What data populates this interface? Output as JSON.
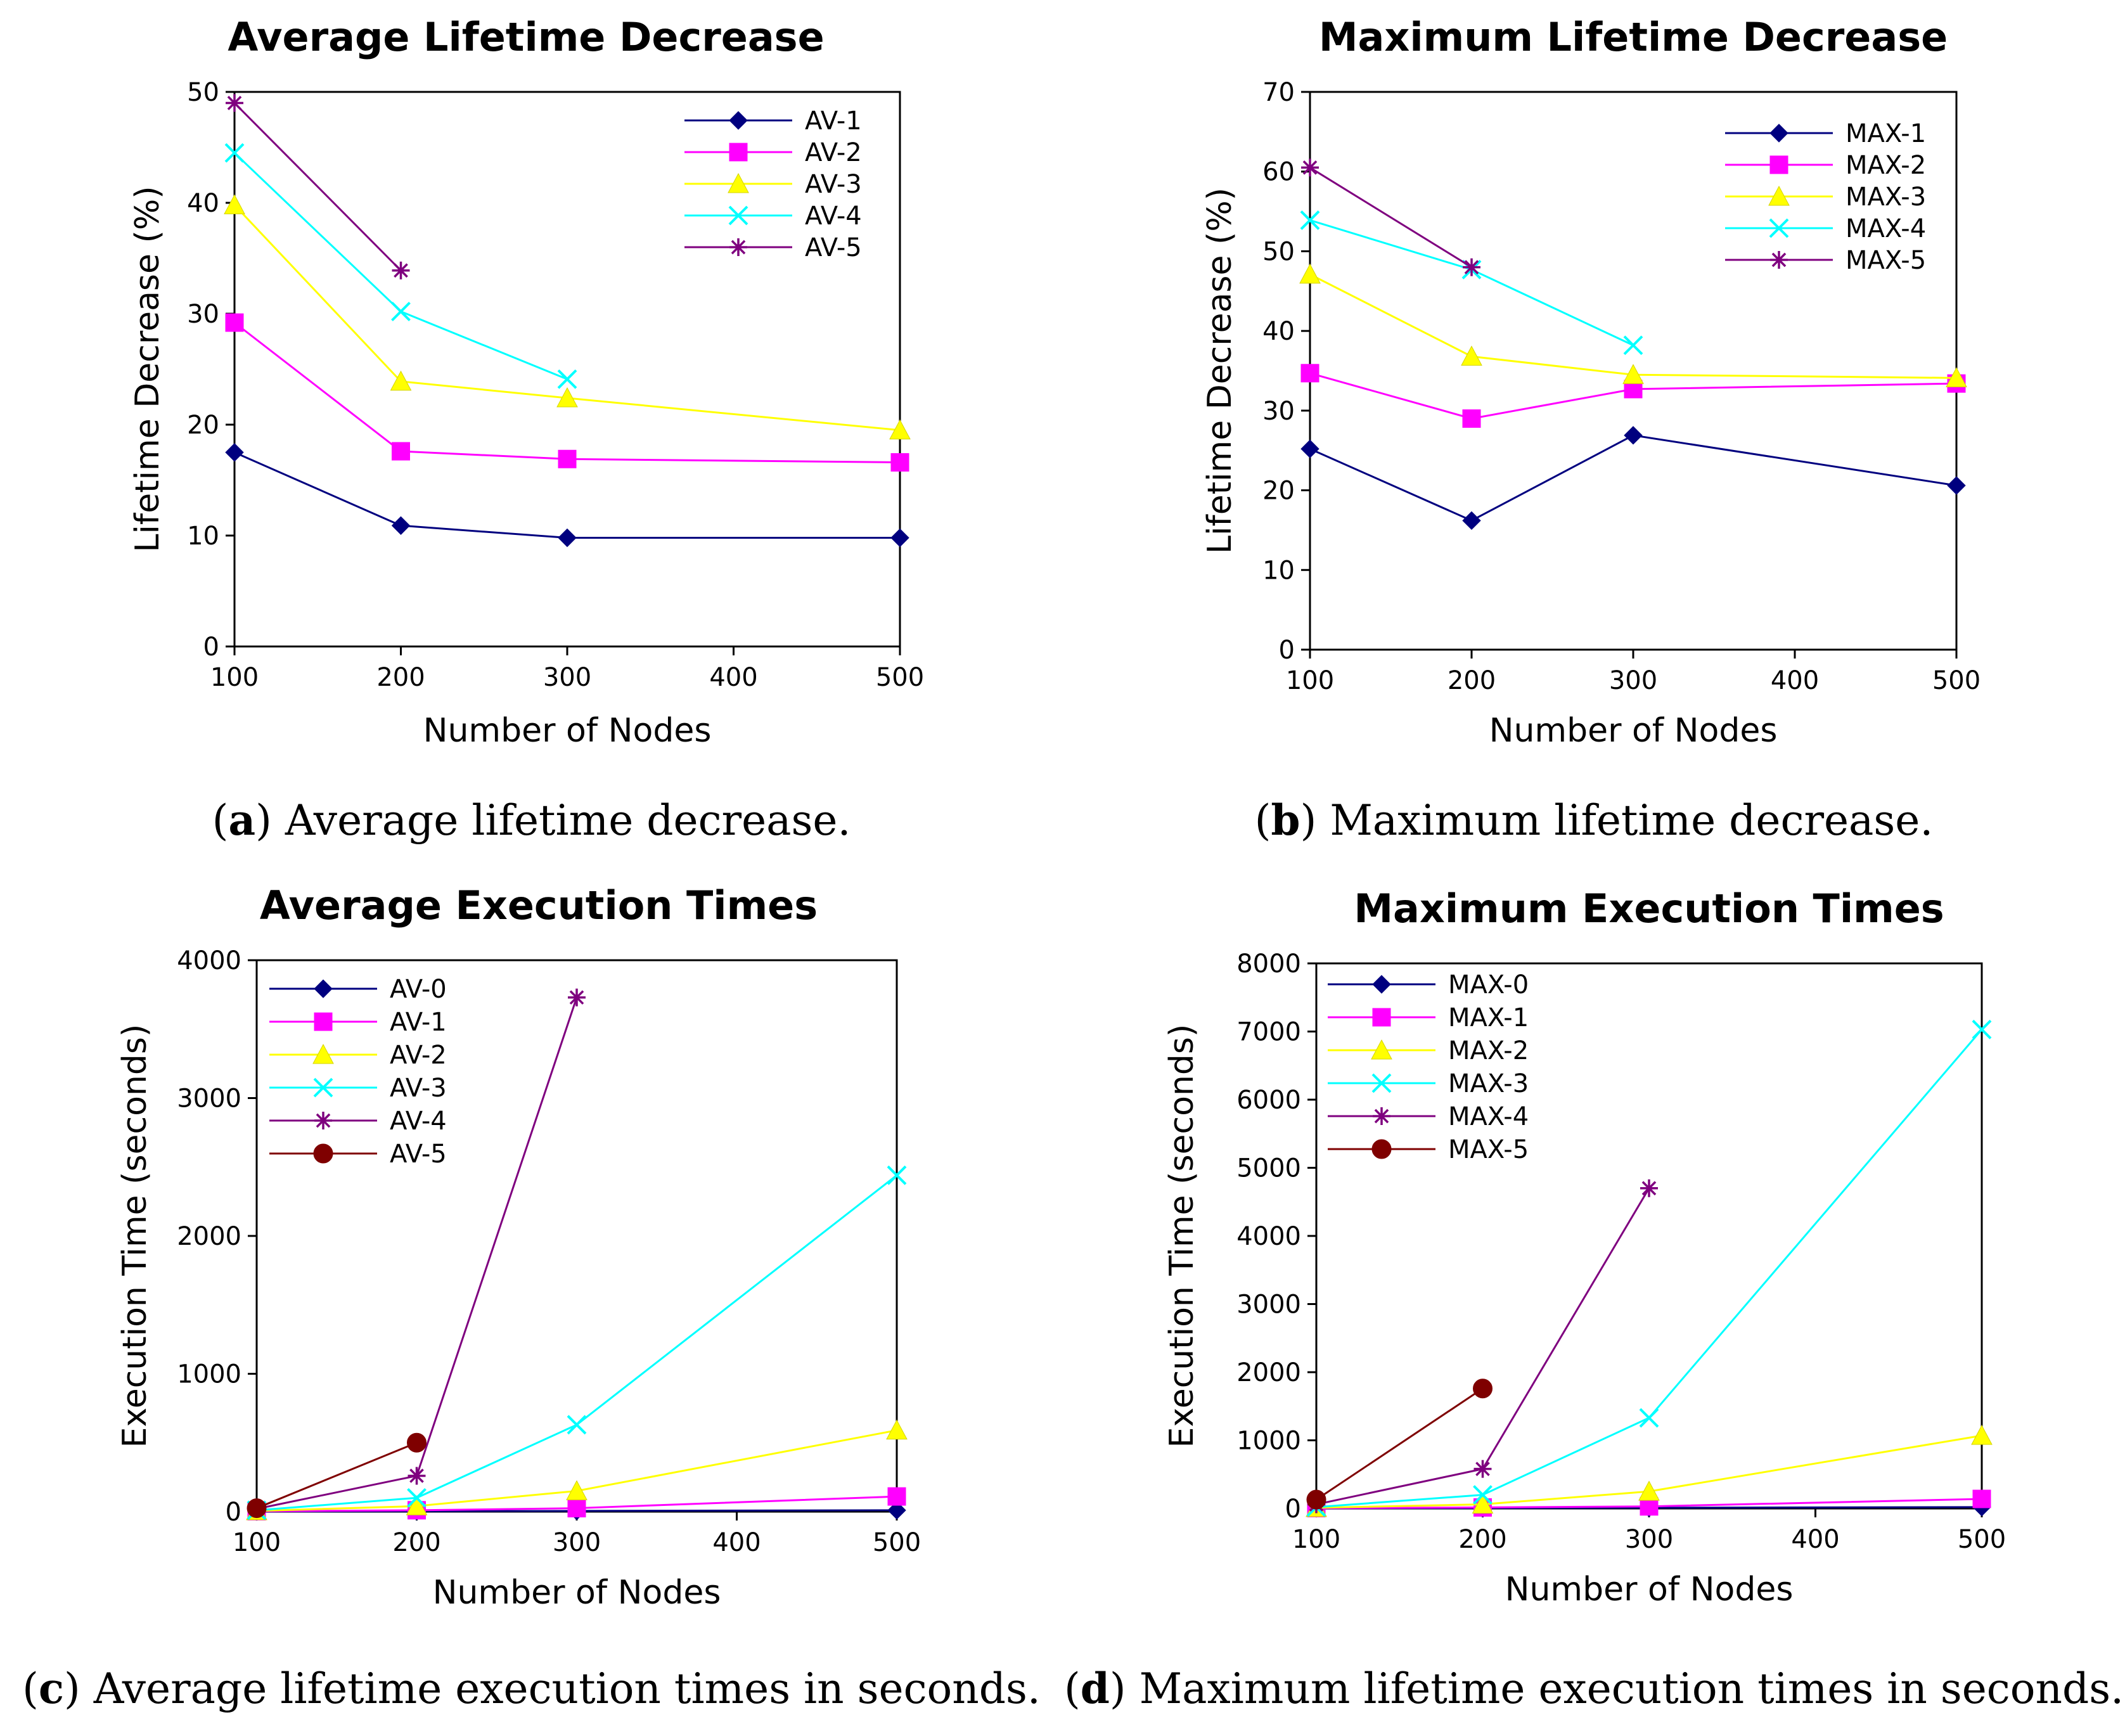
{
  "charts": [
    {
      "caption_letter": "a",
      "caption_text": "Average lifetime decrease.",
      "chart_data": {
        "type": "line",
        "title": "Average Lifetime Decrease",
        "xlabel": "Number of Nodes",
        "ylabel": "Lifetime Decrease (%)",
        "xlim": [
          100,
          500
        ],
        "ylim": [
          0,
          50
        ],
        "xticks": [
          100,
          200,
          300,
          400,
          500
        ],
        "yticks": [
          0,
          10,
          20,
          30,
          40,
          50
        ],
        "grid": false,
        "legend_position": "top-right",
        "series": [
          {
            "name": "AV-1",
            "color": "#00007f",
            "marker": "diamond",
            "x": [
              100,
              200,
              300,
              500
            ],
            "y": [
              17.5,
              10.9,
              9.8,
              9.8
            ]
          },
          {
            "name": "AV-2",
            "color": "#ff00ff",
            "marker": "square",
            "x": [
              100,
              200,
              300,
              500
            ],
            "y": [
              29.2,
              17.6,
              16.9,
              16.6
            ]
          },
          {
            "name": "AV-3",
            "color": "#ffff00",
            "marker": "triangle",
            "x": [
              100,
              200,
              300,
              500
            ],
            "y": [
              39.8,
              23.9,
              22.4,
              19.5
            ]
          },
          {
            "name": "AV-4",
            "color": "#00ffff",
            "marker": "x",
            "x": [
              100,
              200,
              300
            ],
            "y": [
              44.5,
              30.2,
              24.1
            ]
          },
          {
            "name": "AV-5",
            "color": "#7f007f",
            "marker": "star",
            "x": [
              100,
              200
            ],
            "y": [
              49.0,
              33.9
            ]
          }
        ]
      }
    },
    {
      "caption_letter": "b",
      "caption_text": "Maximum lifetime decrease.",
      "chart_data": {
        "type": "line",
        "title": "Maximum Lifetime Decrease",
        "xlabel": "Number of Nodes",
        "ylabel": "Lifetime Decrease (%)",
        "xlim": [
          100,
          500
        ],
        "ylim": [
          0,
          70
        ],
        "xticks": [
          100,
          200,
          300,
          400,
          500
        ],
        "yticks": [
          0,
          10,
          20,
          30,
          40,
          50,
          60,
          70
        ],
        "grid": false,
        "legend_position": "top-right",
        "series": [
          {
            "name": "MAX-1",
            "color": "#00007f",
            "marker": "diamond",
            "x": [
              100,
              200,
              300,
              500
            ],
            "y": [
              25.2,
              16.2,
              26.9,
              20.6
            ]
          },
          {
            "name": "MAX-2",
            "color": "#ff00ff",
            "marker": "square",
            "x": [
              100,
              200,
              300,
              500
            ],
            "y": [
              34.7,
              29.0,
              32.7,
              33.4
            ]
          },
          {
            "name": "MAX-3",
            "color": "#ffff00",
            "marker": "triangle",
            "x": [
              100,
              200,
              300,
              500
            ],
            "y": [
              47.1,
              36.8,
              34.5,
              34.1
            ]
          },
          {
            "name": "MAX-4",
            "color": "#00ffff",
            "marker": "x",
            "x": [
              100,
              200,
              300
            ],
            "y": [
              53.9,
              47.7,
              38.2
            ]
          },
          {
            "name": "MAX-5",
            "color": "#7f007f",
            "marker": "star",
            "x": [
              100,
              200
            ],
            "y": [
              60.5,
              48.0
            ]
          }
        ]
      }
    },
    {
      "caption_letter": "c",
      "caption_text": "Average lifetime execution times in seconds.",
      "chart_data": {
        "type": "line",
        "title": "Average Execution Times",
        "xlabel": "Number of Nodes",
        "ylabel": "Execution Time (seconds)",
        "xlim": [
          100,
          500
        ],
        "ylim": [
          0,
          4000
        ],
        "xticks": [
          100,
          200,
          300,
          400,
          500
        ],
        "yticks": [
          0,
          1000,
          2000,
          3000,
          4000
        ],
        "grid": false,
        "legend_position": "top-left",
        "series": [
          {
            "name": "AV-0",
            "color": "#00007f",
            "marker": "diamond",
            "x": [
              100,
              200,
              300,
              500
            ],
            "y": [
              1,
              3,
              5,
              10
            ]
          },
          {
            "name": "AV-1",
            "color": "#ff00ff",
            "marker": "square",
            "x": [
              100,
              200,
              300,
              500
            ],
            "y": [
              3,
              10,
              25,
              110
            ]
          },
          {
            "name": "AV-2",
            "color": "#ffff00",
            "marker": "triangle",
            "x": [
              100,
              200,
              300,
              500
            ],
            "y": [
              5,
              40,
              150,
              590
            ]
          },
          {
            "name": "AV-3",
            "color": "#00ffff",
            "marker": "x",
            "x": [
              100,
              200,
              300,
              500
            ],
            "y": [
              10,
              100,
              630,
              2440
            ]
          },
          {
            "name": "AV-4",
            "color": "#7f007f",
            "marker": "star",
            "x": [
              100,
              200,
              300
            ],
            "y": [
              20,
              260,
              3730
            ]
          },
          {
            "name": "AV-5",
            "color": "#7f0000",
            "marker": "circle",
            "x": [
              100,
              200
            ],
            "y": [
              25,
              500
            ]
          }
        ]
      }
    },
    {
      "caption_letter": "d",
      "caption_text": "Maximum lifetime execution times in seconds.",
      "chart_data": {
        "type": "line",
        "title": "Maximum Execution Times",
        "xlabel": "Number of Nodes",
        "ylabel": "Execution Time (seconds)",
        "xlim": [
          100,
          500
        ],
        "ylim": [
          0,
          8000
        ],
        "xticks": [
          100,
          200,
          300,
          400,
          500
        ],
        "yticks": [
          0,
          1000,
          2000,
          3000,
          4000,
          5000,
          6000,
          7000,
          8000
        ],
        "grid": false,
        "legend_position": "top-left",
        "series": [
          {
            "name": "MAX-0",
            "color": "#00007f",
            "marker": "diamond",
            "x": [
              100,
              200,
              300,
              500
            ],
            "y": [
              2,
              5,
              10,
              20
            ]
          },
          {
            "name": "MAX-1",
            "color": "#ff00ff",
            "marker": "square",
            "x": [
              100,
              200,
              300,
              500
            ],
            "y": [
              5,
              15,
              30,
              140
            ]
          },
          {
            "name": "MAX-2",
            "color": "#ffff00",
            "marker": "triangle",
            "x": [
              100,
              200,
              300,
              500
            ],
            "y": [
              10,
              60,
              250,
              1070
            ]
          },
          {
            "name": "MAX-3",
            "color": "#00ffff",
            "marker": "x",
            "x": [
              100,
              200,
              300,
              500
            ],
            "y": [
              20,
              200,
              1330,
              7030
            ]
          },
          {
            "name": "MAX-4",
            "color": "#7f007f",
            "marker": "star",
            "x": [
              100,
              200,
              300
            ],
            "y": [
              60,
              580,
              4700
            ]
          },
          {
            "name": "MAX-5",
            "color": "#7f0000",
            "marker": "circle",
            "x": [
              100,
              200
            ],
            "y": [
              130,
              1760
            ]
          }
        ]
      }
    }
  ]
}
